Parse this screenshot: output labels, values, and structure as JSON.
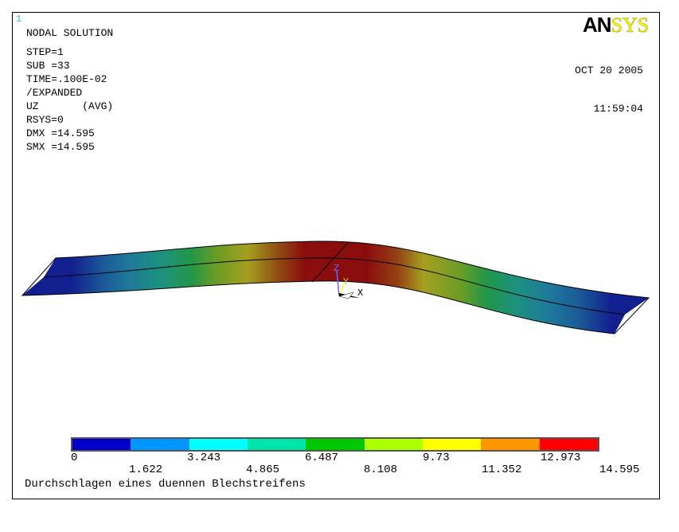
{
  "window_number": "1",
  "info_lines": [
    "NODAL SOLUTION",
    "STEP=1",
    "SUB =33",
    "TIME=.100E-02",
    "/EXPANDED",
    "UZ       (AVG)",
    "RSYS=0",
    "DMX =14.595",
    "SMX =14.595"
  ],
  "logo": {
    "left": "AN",
    "right": "SYS"
  },
  "date": "OCT 20 2005",
  "time": "11:59:04",
  "axes": {
    "z": "Z",
    "y": "Y",
    "x": "X"
  },
  "scale_colors": [
    "#0000c8",
    "#0096ff",
    "#00ffff",
    "#00e6aa",
    "#00c800",
    "#aaff00",
    "#ffff00",
    "#ff9600",
    "#ff0000"
  ],
  "scale_labels_top": [
    "0",
    "3.243",
    "6.487",
    "9.73",
    "12.973"
  ],
  "scale_labels_bottom": [
    "1.622",
    "4.865",
    "8.108",
    "11.352",
    "14.595"
  ],
  "caption": "Durchschlagen eines duennen Blechstreifens"
}
